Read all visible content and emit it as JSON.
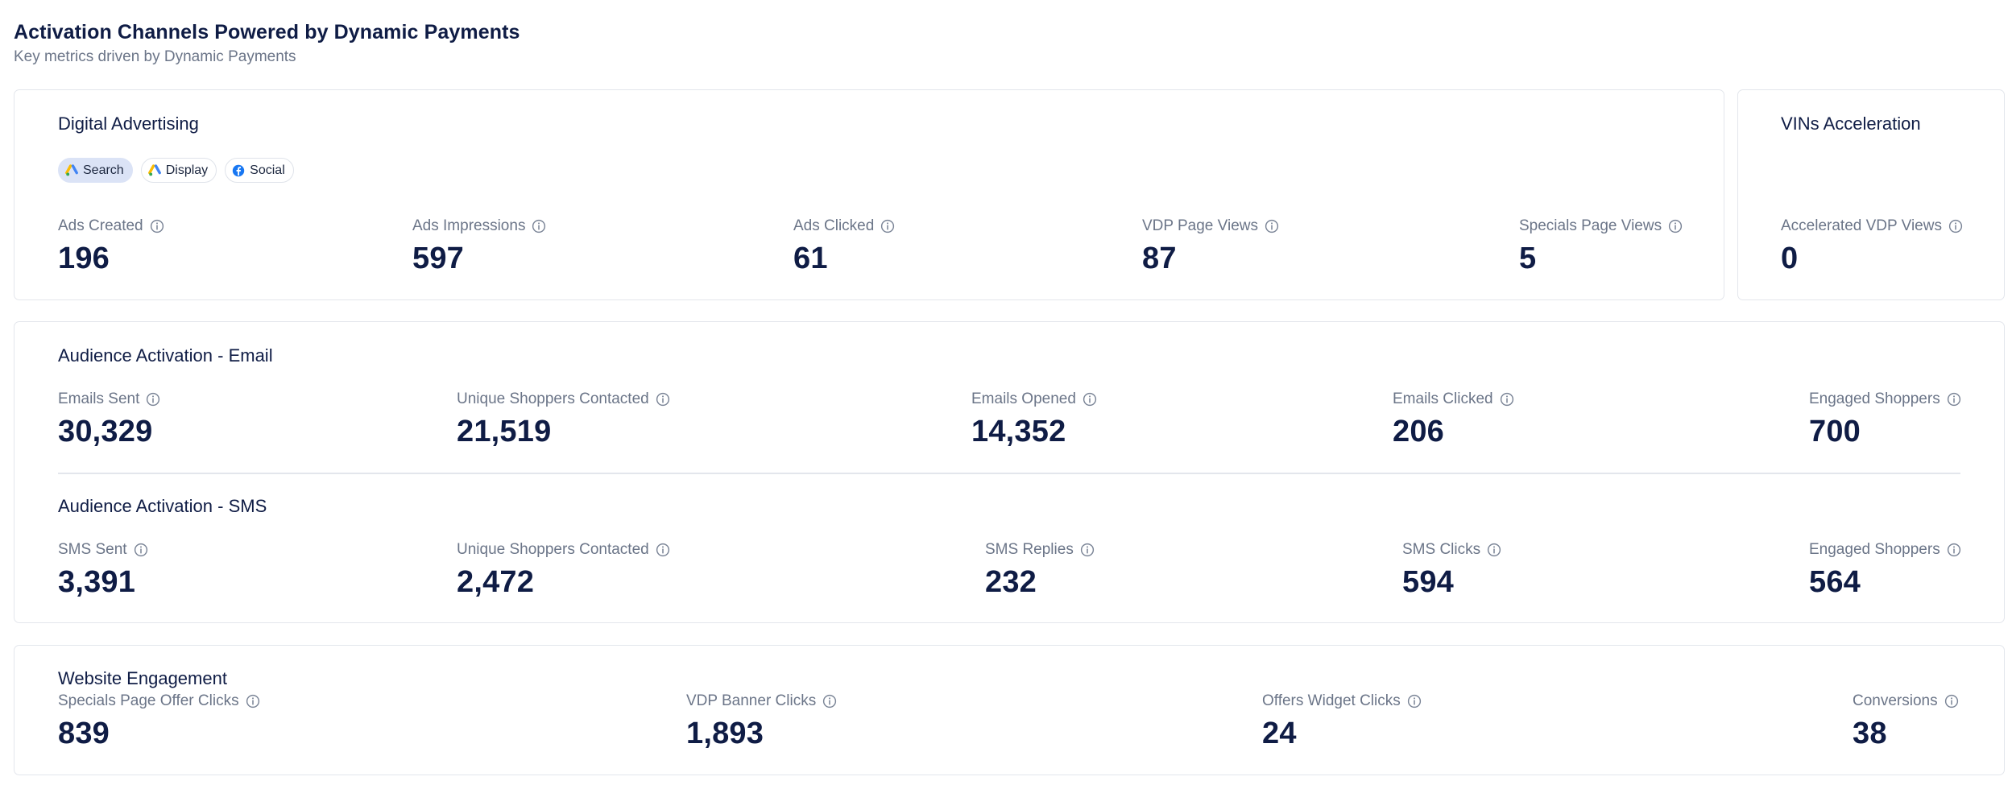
{
  "header": {
    "title": "Activation Channels Powered by Dynamic Payments",
    "subtitle": "Key metrics driven by Dynamic Payments"
  },
  "digital_advertising": {
    "title": "Digital Advertising",
    "chips": [
      {
        "label": "Search",
        "icon": "google-ads-icon",
        "active": true
      },
      {
        "label": "Display",
        "icon": "google-ads-icon",
        "active": false
      },
      {
        "label": "Social",
        "icon": "facebook-icon",
        "active": false
      }
    ],
    "metrics": [
      {
        "label": "Ads Created",
        "value": "196"
      },
      {
        "label": "Ads Impressions",
        "value": "597"
      },
      {
        "label": "Ads Clicked",
        "value": "61"
      },
      {
        "label": "VDP Page Views",
        "value": "87"
      },
      {
        "label": "Specials Page Views",
        "value": "5"
      }
    ]
  },
  "vins_acceleration": {
    "title": "VINs Acceleration",
    "metrics": [
      {
        "label": "Accelerated VDP Views",
        "value": "0"
      }
    ]
  },
  "audience_email": {
    "title": "Audience Activation - Email",
    "metrics": [
      {
        "label": "Emails Sent",
        "value": "30,329"
      },
      {
        "label": "Unique Shoppers Contacted",
        "value": "21,519"
      },
      {
        "label": "Emails Opened",
        "value": "14,352"
      },
      {
        "label": "Emails Clicked",
        "value": "206"
      },
      {
        "label": "Engaged Shoppers",
        "value": "700"
      }
    ]
  },
  "audience_sms": {
    "title": "Audience Activation - SMS",
    "metrics": [
      {
        "label": "SMS Sent",
        "value": "3,391"
      },
      {
        "label": "Unique Shoppers Contacted",
        "value": "2,472"
      },
      {
        "label": "SMS Replies",
        "value": "232"
      },
      {
        "label": "SMS Clicks",
        "value": "594"
      },
      {
        "label": "Engaged Shoppers",
        "value": "564"
      }
    ]
  },
  "website_engagement": {
    "title": "Website Engagement",
    "metrics": [
      {
        "label": "Specials Page Offer Clicks",
        "value": "839"
      },
      {
        "label": "VDP Banner Clicks",
        "value": "1,893"
      },
      {
        "label": "Offers Widget Clicks",
        "value": "24"
      },
      {
        "label": "Conversions",
        "value": "38"
      }
    ]
  },
  "colors": {
    "heading": "#0f1c45",
    "label": "#6b7588",
    "border": "#e3e6ec",
    "chip_active_bg": "#dbe3f6"
  }
}
